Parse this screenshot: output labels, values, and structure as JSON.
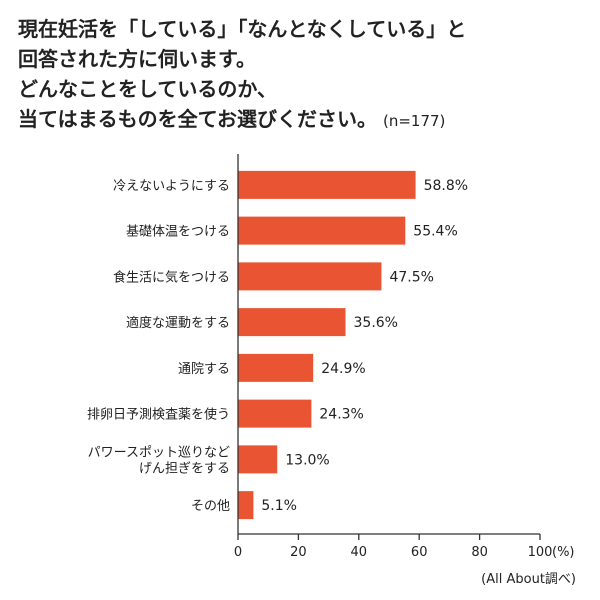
{
  "title": {
    "lines": [
      "現在妊活を「している」「なんとなくしている」と",
      "回答された方に伺います。",
      "どんなことをしているのか、",
      "当てはまるものを全てお選びください。"
    ],
    "note": "(n=177)"
  },
  "source": "(All About調べ)",
  "colors": {
    "bar": "#e95432",
    "axis": "#333333",
    "text": "#222222"
  },
  "chart_data": {
    "type": "bar",
    "orientation": "horizontal",
    "categories": [
      [
        "冷えないようにする"
      ],
      [
        "基礎体温をつける"
      ],
      [
        "食生活に気をつける"
      ],
      [
        "適度な運動をする"
      ],
      [
        "通院する"
      ],
      [
        "排卵日予測検査薬を使う"
      ],
      [
        "パワースポット巡りなど",
        "げん担ぎをする"
      ],
      [
        "その他"
      ]
    ],
    "values": [
      58.8,
      55.4,
      47.5,
      35.6,
      24.9,
      24.3,
      13.0,
      5.1
    ],
    "value_labels": [
      "58.8%",
      "55.4%",
      "47.5%",
      "35.6%",
      "24.9%",
      "24.3%",
      "13.0%",
      "5.1%"
    ],
    "xlim": [
      0,
      100
    ],
    "xticks": [
      "0",
      "20",
      "40",
      "60",
      "80",
      "100"
    ],
    "xunit": "(%)",
    "grid": false
  }
}
